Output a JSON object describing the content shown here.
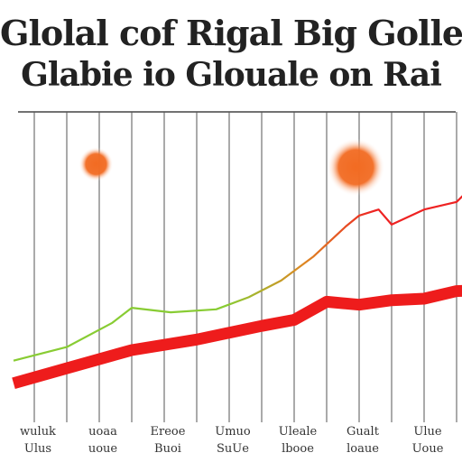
{
  "chart_data": {
    "type": "line",
    "title": [
      "Glolal cof Rigal Big Golle",
      "Glabie io Glouale on Rai"
    ],
    "xlabel": "",
    "ylabel": "",
    "categories": [
      [
        "wuluk",
        "Ulus"
      ],
      [
        "uoaa",
        "uoue"
      ],
      [
        "Ereoe",
        "Buoi"
      ],
      [
        "Umuo",
        "SuUe"
      ],
      [
        "Uleale",
        "lbooe"
      ],
      [
        "Gualt",
        "loaue"
      ],
      [
        "Ulue",
        "Uoue"
      ]
    ],
    "x": [
      0,
      0.5,
      1,
      1.5,
      2,
      2.5,
      3,
      3.5,
      4,
      4.5,
      5,
      5.5,
      6,
      6.5,
      7
    ],
    "ylim": [
      0,
      100
    ],
    "series": [
      {
        "color": "#ee1c1c",
        "x": [
          -0.32,
          0.5,
          1.5,
          2.5,
          3.5,
          4,
          4.5,
          5,
          5.5,
          6,
          6.5,
          7
        ],
        "values": [
          10.5,
          15.5,
          21.5,
          25,
          29.5,
          31.5,
          37.5,
          36.5,
          38,
          38.5,
          41,
          41.5
        ]
      },
      {
        "color": "#ee3322",
        "segment_colors": [
          "#88cc33",
          "#dd8822",
          "#ee2222"
        ],
        "x": [
          -0.32,
          0.5,
          1.2,
          1.5,
          2.1,
          2.8,
          3.3,
          3.8,
          4.3,
          4.8,
          5.0,
          5.3,
          5.5,
          6.0,
          6.5,
          6.8,
          7.1
        ],
        "values": [
          18,
          22.5,
          30.5,
          35.5,
          34,
          35,
          39,
          44.5,
          52.5,
          62.5,
          66,
          68,
          63,
          68,
          70.5,
          77,
          83
        ]
      }
    ],
    "markers": [
      {
        "x": 0.95,
        "y": 83,
        "color": "#f26b22"
      },
      {
        "x": 4.95,
        "y": 82,
        "color": "#f26b22"
      }
    ],
    "grid": {
      "vertical": true,
      "horizontal": false
    }
  }
}
